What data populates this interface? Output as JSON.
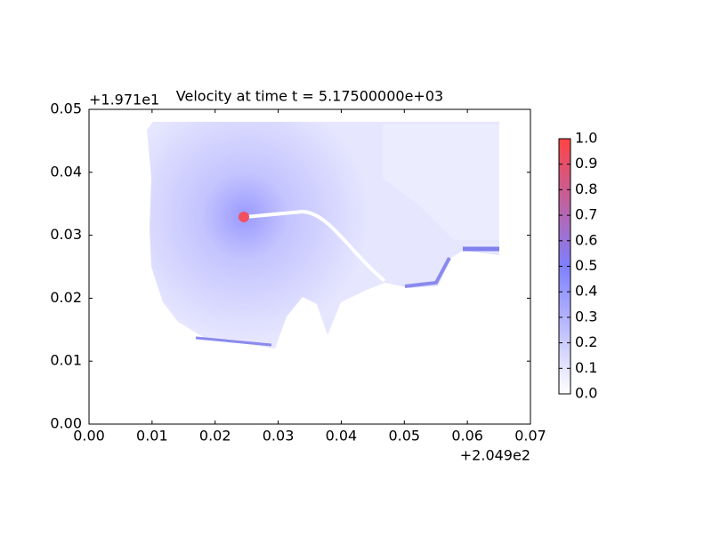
{
  "chart_data": {
    "type": "heatmap",
    "title": "Velocity at time t = 5.17500000e+03",
    "x_offset_label": "+2.049e2",
    "y_offset_label": "+1.971e1",
    "xlim": [
      0,
      0.07
    ],
    "ylim": [
      0,
      0.05
    ],
    "xticks": [
      {
        "value": 0,
        "label": "0.00"
      },
      0.01,
      0.02,
      0.03,
      0.04,
      0.05,
      0.06,
      0.07
    ],
    "yticks": [
      {
        "value": 0,
        "label": "0.00"
      },
      0.01,
      0.02,
      0.03,
      0.04,
      0.05
    ],
    "colorbar": {
      "lim": [
        0,
        1
      ],
      "ticks": [
        {
          "value": 0,
          "label": "0.0"
        },
        0.1,
        0.2,
        0.3,
        0.4,
        0.5,
        0.6,
        0.7,
        0.8,
        0.9,
        {
          "value": 1,
          "label": "1.0"
        }
      ],
      "colors": [
        "#ffffff",
        "#7f7fff",
        "#ff4444"
      ]
    }
  }
}
